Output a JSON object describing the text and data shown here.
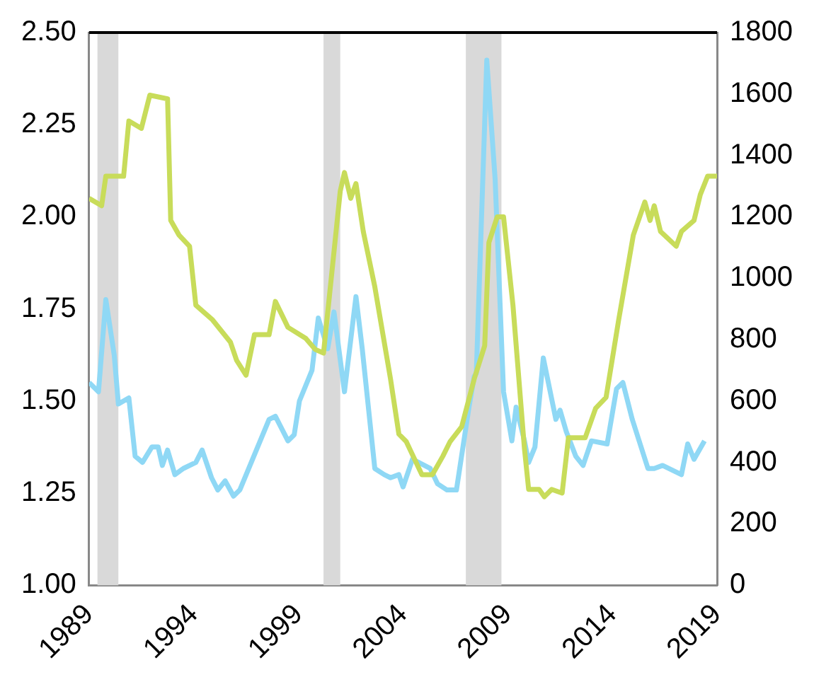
{
  "chart_data": {
    "type": "line",
    "xlim": [
      1989,
      2019
    ],
    "xticks": [
      1989,
      1994,
      1999,
      2004,
      2009,
      2014,
      2019
    ],
    "ylim": [
      1,
      2.5
    ],
    "yticks": [
      {
        "value": 1,
        "label": "1.00"
      },
      1.25,
      {
        "value": 1.5,
        "label": "1.50"
      },
      1.75,
      {
        "value": 2,
        "label": "2.00"
      },
      2.25,
      {
        "value": 2.5,
        "label": "2.50"
      }
    ],
    "y2lim": [
      0,
      1800
    ],
    "y2ticks": [
      0,
      200,
      400,
      600,
      800,
      1000,
      1200,
      1400,
      1600,
      1800
    ],
    "grid": false,
    "legend": false,
    "marker": "none",
    "line_style": "solid",
    "bands": [
      {
        "axis": "x",
        "from": 1989.4,
        "to": 1990.4,
        "color": "#d9d9d9"
      },
      {
        "axis": "x",
        "from": 2000.2,
        "to": 2001.0,
        "color": "#d9d9d9"
      },
      {
        "axis": "x",
        "from": 2007.0,
        "to": 2008.7,
        "color": "#d9d9d9"
      }
    ],
    "series": [
      {
        "color": "#c8dc5a",
        "x": [
          1989,
          1989.6,
          1989.8,
          1990.65,
          1990.9,
          1991.5,
          1991.9,
          1992.75,
          1992.9,
          1993.3,
          1993.8,
          1994.1,
          1994.9,
          1995.75,
          1996.05,
          1996.5,
          1996.9,
          1997.6,
          1997.9,
          1998.5,
          1999.35,
          1999.8,
          2000.2,
          2001,
          2001.2,
          2001.5,
          2001.75,
          2002.1,
          2002.65,
          2003.4,
          2003.8,
          2004.15,
          2004.9,
          2005.4,
          2005.9,
          2006.25,
          2006.8,
          2007.4,
          2007.9,
          2008.1,
          2008.5,
          2008.8,
          2009.25,
          2009.8,
          2010,
          2010.5,
          2010.75,
          2011.1,
          2011.6,
          2011.9,
          2012.7,
          2013.2,
          2013.7,
          2014.3,
          2015,
          2015.55,
          2015.8,
          2016,
          2016.3,
          2017.05,
          2017.3,
          2017.9,
          2018.2,
          2018.55,
          2019
        ],
        "values": [
          2.05,
          2.03,
          2.11,
          2.11,
          2.26,
          2.24,
          2.33,
          2.32,
          1.99,
          1.95,
          1.92,
          1.76,
          1.72,
          1.66,
          1.61,
          1.57,
          1.68,
          1.68,
          1.77,
          1.7,
          1.67,
          1.64,
          1.63,
          2.07,
          2.12,
          2.05,
          2.09,
          1.96,
          1.81,
          1.56,
          1.41,
          1.39,
          1.3,
          1.3,
          1.35,
          1.39,
          1.43,
          1.56,
          1.65,
          1.93,
          2,
          2,
          1.76,
          1.37,
          1.26,
          1.26,
          1.24,
          1.26,
          1.25,
          1.4,
          1.4,
          1.48,
          1.51,
          1.72,
          1.95,
          2.04,
          1.99,
          2.03,
          1.96,
          1.92,
          1.96,
          1.99,
          2.06,
          2.11,
          2.11
        ]
      },
      {
        "color": "#8fd8f5",
        "axis": "y2",
        "x": [
          1989,
          1989.45,
          1989.8,
          1990.2,
          1990.4,
          1990.9,
          1991.2,
          1991.55,
          1992,
          1992.3,
          1992.5,
          1992.75,
          1993.1,
          1993.5,
          1994.1,
          1994.4,
          1994.85,
          1995.15,
          1995.5,
          1995.9,
          1996.2,
          1997.6,
          1997.9,
          1998.5,
          1998.8,
          1999.05,
          1999.65,
          1999.95,
          2000.4,
          2000.7,
          2001.2,
          2001.75,
          2002.05,
          2002.65,
          2003.1,
          2003.4,
          2003.8,
          2004,
          2004.45,
          2005.3,
          2005.65,
          2006.1,
          2006.55,
          2007.15,
          2007.4,
          2007.5,
          2008,
          2008.4,
          2008.8,
          2009.2,
          2009.4,
          2009.8,
          2010,
          2010.3,
          2010.7,
          2011.3,
          2011.5,
          2011.8,
          2012.25,
          2012.6,
          2013,
          2013.75,
          2014.2,
          2014.5,
          2014.95,
          2015.7,
          2016,
          2016.4,
          2017.3,
          2017.6,
          2017.9,
          2018.4
        ],
        "values": [
          660,
          630,
          930,
          750,
          590,
          610,
          420,
          400,
          450,
          450,
          390,
          440,
          360,
          380,
          400,
          440,
          350,
          310,
          340,
          290,
          310,
          540,
          550,
          470,
          490,
          600,
          700,
          870,
          770,
          890,
          630,
          940,
          770,
          380,
          360,
          350,
          360,
          320,
          410,
          380,
          330,
          310,
          310,
          580,
          680,
          690,
          1710,
          1320,
          630,
          470,
          580,
          470,
          400,
          450,
          740,
          540,
          570,
          500,
          420,
          390,
          470,
          460,
          640,
          660,
          540,
          380,
          380,
          390,
          360,
          460,
          410,
          470
        ]
      }
    ]
  }
}
